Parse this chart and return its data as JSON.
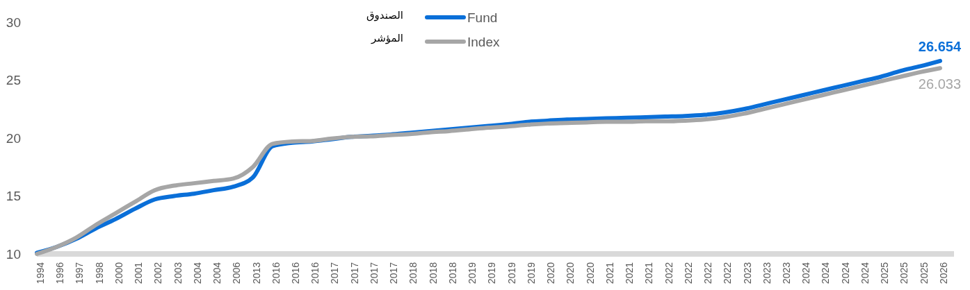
{
  "chart_data": {
    "type": "line",
    "categories": [
      "1994",
      "1996",
      "1997",
      "1998",
      "2000",
      "2001",
      "2002",
      "2003",
      "2004",
      "2004",
      "2006",
      "2013",
      "2016",
      "2016",
      "2016",
      "2017",
      "2017",
      "2017",
      "2017",
      "2018",
      "2018",
      "2018",
      "2019",
      "2019",
      "2019",
      "2019",
      "2020",
      "2020",
      "2020",
      "2021",
      "2021",
      "2021",
      "2022",
      "2022",
      "2022",
      "2022",
      "2023",
      "2023",
      "2023",
      "2024",
      "2024",
      "2024",
      "2024",
      "2025",
      "2025",
      "2025",
      "2026"
    ],
    "series": [
      {
        "name": "Fund",
        "color": "#0a6fd8",
        "values": [
          10.1,
          10.6,
          11.3,
          12.2,
          13.0,
          13.9,
          14.7,
          15.0,
          15.2,
          15.5,
          15.8,
          16.6,
          19.3,
          19.6,
          19.7,
          19.9,
          20.1,
          20.2,
          20.3,
          20.45,
          20.6,
          20.75,
          20.9,
          21.05,
          21.2,
          21.4,
          21.5,
          21.6,
          21.65,
          21.7,
          21.75,
          21.8,
          21.85,
          21.9,
          22.0,
          22.2,
          22.5,
          22.9,
          23.3,
          23.7,
          24.1,
          24.5,
          24.9,
          25.3,
          25.8,
          26.2,
          26.654
        ],
        "value_labels": [
          null,
          null,
          null,
          null,
          null,
          null,
          null,
          null,
          null,
          null,
          null,
          null,
          null,
          null,
          null,
          null,
          null,
          null,
          null,
          null,
          null,
          null,
          null,
          null,
          null,
          null,
          null,
          null,
          null,
          null,
          null,
          null,
          null,
          null,
          null,
          null,
          null,
          null,
          null,
          null,
          null,
          null,
          null,
          null,
          null,
          null,
          "26.654"
        ]
      },
      {
        "name": "Index",
        "color": "#a6a6a6",
        "values": [
          10.0,
          10.6,
          11.4,
          12.5,
          13.5,
          14.5,
          15.5,
          15.9,
          16.1,
          16.3,
          16.5,
          17.5,
          19.5,
          19.7,
          19.75,
          19.95,
          20.1,
          20.15,
          20.25,
          20.35,
          20.5,
          20.6,
          20.75,
          20.9,
          21.0,
          21.15,
          21.25,
          21.3,
          21.35,
          21.4,
          21.4,
          21.45,
          21.45,
          21.5,
          21.6,
          21.8,
          22.1,
          22.5,
          22.9,
          23.3,
          23.7,
          24.1,
          24.5,
          24.9,
          25.3,
          25.7,
          26.033
        ],
        "value_labels": [
          null,
          null,
          null,
          null,
          null,
          null,
          null,
          null,
          null,
          null,
          null,
          null,
          null,
          null,
          null,
          null,
          null,
          null,
          null,
          null,
          null,
          null,
          null,
          null,
          null,
          null,
          null,
          null,
          null,
          null,
          null,
          null,
          null,
          null,
          null,
          null,
          null,
          null,
          null,
          null,
          null,
          null,
          null,
          null,
          null,
          null,
          "26.033"
        ]
      }
    ],
    "annotations": [
      "الصندوق",
      "المؤشر"
    ],
    "ylim": [
      10,
      30
    ],
    "yticks": [
      10,
      15,
      20,
      25,
      30
    ],
    "grid": false,
    "legend": "top",
    "marker": "none",
    "line_style": "solid"
  }
}
